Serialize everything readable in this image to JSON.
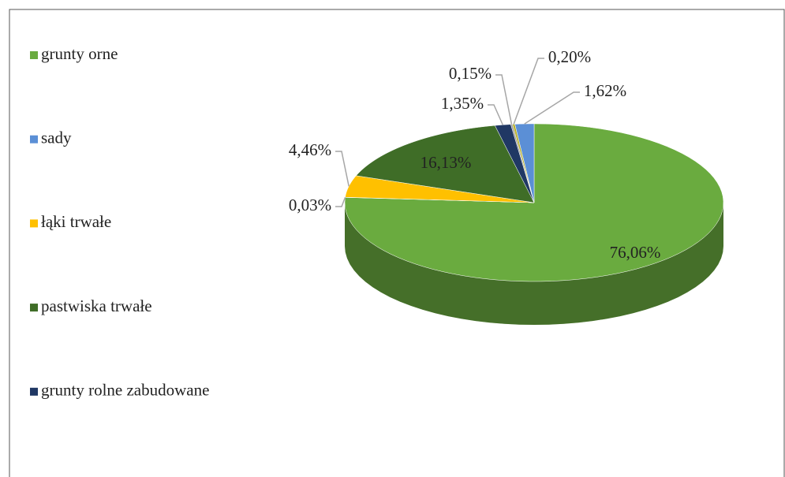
{
  "chart_data": {
    "type": "pie",
    "values": [
      76.06,
      0.03,
      4.46,
      16.13,
      1.35,
      0.15,
      0.2,
      1.62
    ],
    "value_labels": [
      "76,06%",
      "0,03%",
      "4,46%",
      "16,13%",
      "1,35%",
      "0,15%",
      "0,20%",
      "1,62%"
    ],
    "colors": [
      "#6aab3f",
      "#e8b43a",
      "#ffc000",
      "#3f6d27",
      "#203864",
      "#9e9e9e",
      "#b8b12a",
      "#5b8fd6"
    ],
    "legend": [
      {
        "name": "grunty orne",
        "color": "#6aab3f"
      },
      {
        "name": "sady",
        "color": "#5b8fd6"
      },
      {
        "name": "łąki trwałe",
        "color": "#ffc000"
      },
      {
        "name": "pastwiska trwałe",
        "color": "#3f6d27"
      },
      {
        "name": "grunty rolne zabudowane",
        "color": "#203864"
      }
    ]
  }
}
